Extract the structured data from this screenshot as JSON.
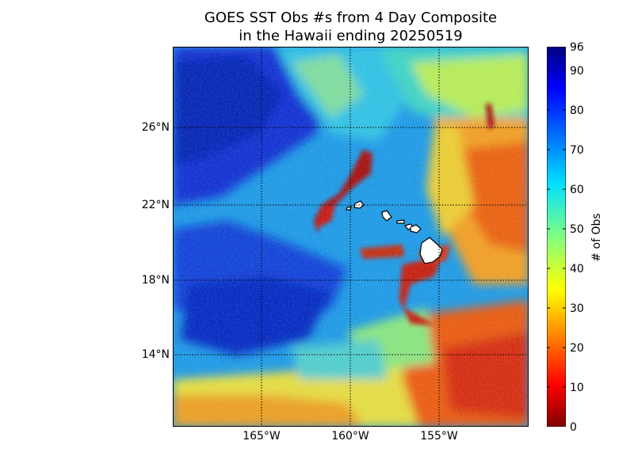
{
  "title_line1": "GOES SST Obs #s from 4 Day Composite",
  "title_line2": "in the Hawaii ending 20250519",
  "colorbar": {
    "label": "# of Obs",
    "ticks": [
      "96",
      "90",
      "80",
      "70",
      "60",
      "50",
      "40",
      "30",
      "20",
      "10",
      "0"
    ],
    "min": 0,
    "max": 96,
    "colormap": "jet"
  },
  "lat_labels": [
    "26°N",
    "22°N",
    "18°N",
    "14°N"
  ],
  "lon_labels": [
    "165°W",
    "160°W",
    "155°W"
  ],
  "grid": "dotted",
  "land_color": "#ffffff"
}
